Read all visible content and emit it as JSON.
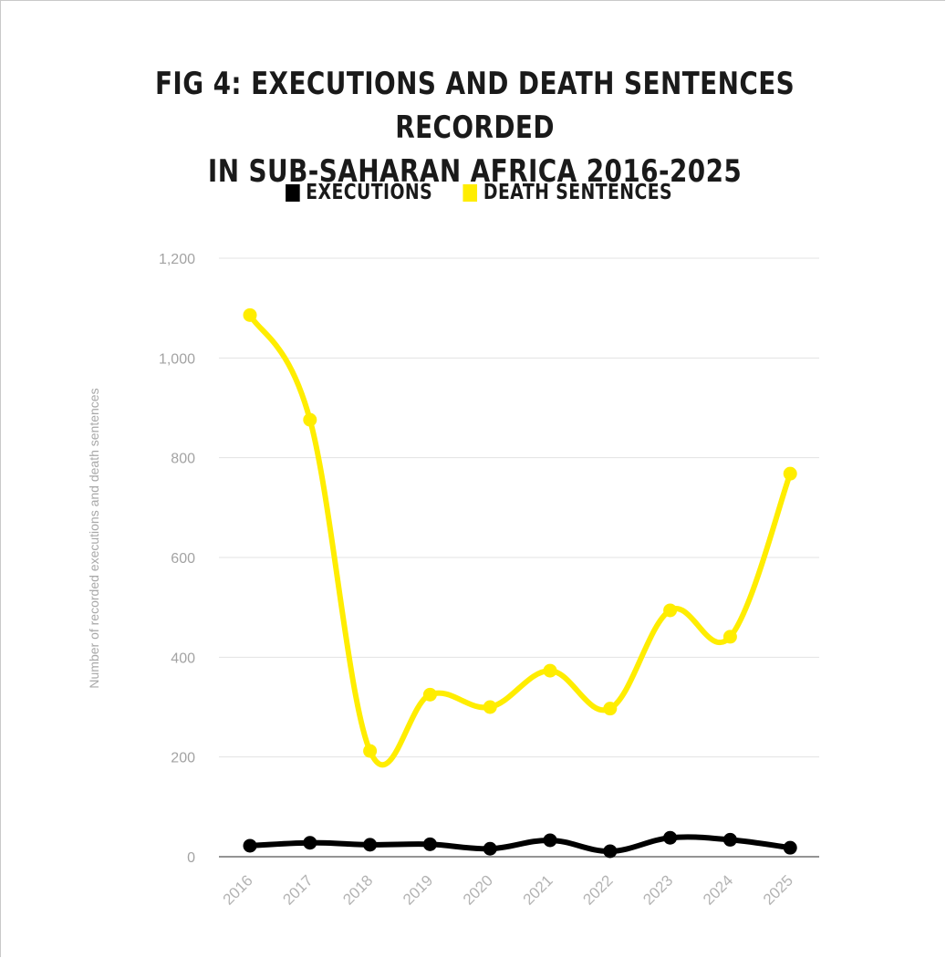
{
  "chart_data": {
    "type": "line",
    "title": "FIG 4: EXECUTIONS AND DEATH SENTENCES RECORDED IN SUB-SAHARAN AFRICA 2016-2025",
    "title_lines": [
      "FIG 4: EXECUTIONS AND DEATH SENTENCES RECORDED",
      "IN SUB-SAHARAN AFRICA 2016-2025"
    ],
    "xlabel": "",
    "ylabel": "Number of recorded executions and death sentences",
    "categories": [
      "2016",
      "2017",
      "2018",
      "2019",
      "2020",
      "2021",
      "2022",
      "2023",
      "2024",
      "2025"
    ],
    "ylim": [
      0,
      1200
    ],
    "yticks": [
      0,
      200,
      400,
      600,
      800,
      1000,
      1200
    ],
    "ytick_labels": [
      "0",
      "200",
      "400",
      "600",
      "800",
      "1,000",
      "1,200"
    ],
    "grid": true,
    "legend_position": "top-center",
    "series": [
      {
        "name": "EXECUTIONS",
        "color": "#000000",
        "values": [
          22,
          28,
          24,
          25,
          16,
          33,
          11,
          38,
          34,
          18
        ]
      },
      {
        "name": "DEATH SENTENCES",
        "color": "#ffed00",
        "values": [
          1086,
          876,
          212,
          325,
          300,
          373,
          297,
          494,
          441,
          768
        ]
      }
    ]
  }
}
